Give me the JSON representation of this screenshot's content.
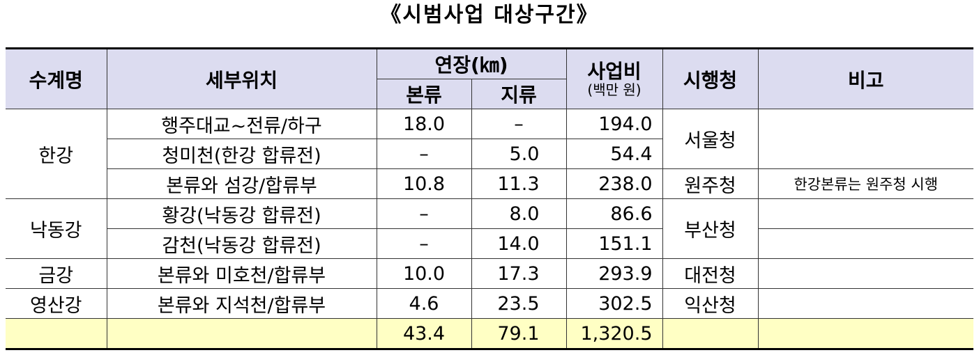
{
  "title": "《시범사업 대상구간》",
  "table": {
    "header": {
      "river": "수계명",
      "location": "세부위치",
      "length": "연장(㎞)",
      "main": "본류",
      "tributary": "지류",
      "cost": "사업비",
      "cost_unit": "(백만 원)",
      "agency": "시행청",
      "note": "비고"
    },
    "rows": [
      {
        "river": "한강",
        "location": "행주대교~전류/하구",
        "main": "18.0",
        "tributary": "–",
        "cost": "194.0",
        "agency": "서울청"
      },
      {
        "location": "청미천(한강 합류전)",
        "main": "–",
        "tributary": "5.0",
        "cost": "54.4"
      },
      {
        "location": "본류와 섬강/합류부",
        "main": "10.8",
        "tributary": "11.3",
        "cost": "238.0",
        "agency": "원주청",
        "note": "한강본류는 원주청 시행"
      },
      {
        "river": "낙동강",
        "location": "황강(낙동강 합류전)",
        "main": "–",
        "tributary": "8.0",
        "cost": "86.6",
        "agency": "부산청"
      },
      {
        "location": "감천(낙동강 합류전)",
        "main": "–",
        "tributary": "14.0",
        "cost": "151.1"
      },
      {
        "river": "금강",
        "location": "본류와 미호천/합류부",
        "main": "10.0",
        "tributary": "17.3",
        "cost": "293.9",
        "agency": "대전청"
      },
      {
        "river": "영산강",
        "location": "본류와 지석천/합류부",
        "main": "4.6",
        "tributary": "23.5",
        "cost": "302.5",
        "agency": "익산청"
      }
    ],
    "total": {
      "main": "43.4",
      "tributary": "79.1",
      "cost": "1,320.5"
    }
  }
}
